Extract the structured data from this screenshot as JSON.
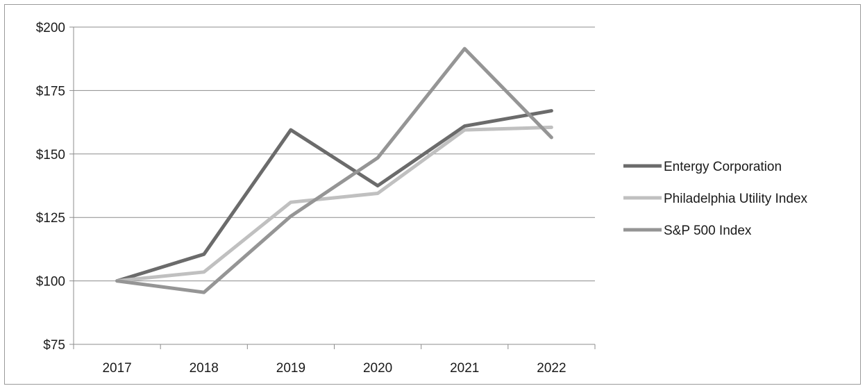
{
  "chart_data": {
    "type": "line",
    "categories": [
      "2017",
      "2018",
      "2019",
      "2020",
      "2021",
      "2022"
    ],
    "series": [
      {
        "name": "Entergy Corporation",
        "values": [
          100,
          110.5,
          159.5,
          137.5,
          161,
          167
        ],
        "color": "#6b6b6b"
      },
      {
        "name": "Philadelphia Utility Index",
        "values": [
          100,
          103.5,
          131,
          134.5,
          159.5,
          160.5
        ],
        "color": "#c0c0c0"
      },
      {
        "name": "S&P 500 Index",
        "values": [
          100,
          95.5,
          125.5,
          148.5,
          191.5,
          156.5
        ],
        "color": "#959595"
      }
    ],
    "y_ticks": [
      "$75",
      "$100",
      "$125",
      "$150",
      "$175",
      "$200"
    ],
    "ylim": [
      75,
      200
    ],
    "grid": true,
    "legend_position": "right"
  }
}
